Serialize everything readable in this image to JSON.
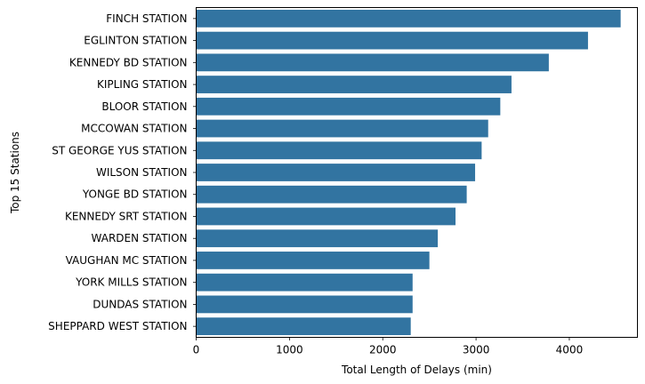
{
  "chart_data": {
    "type": "bar",
    "orientation": "horizontal",
    "title": "",
    "xlabel": "Total Length of Delays (min)",
    "ylabel": "Top 15 Stations",
    "categories": [
      "FINCH STATION",
      "EGLINTON STATION",
      "KENNEDY BD STATION",
      "KIPLING STATION",
      "BLOOR STATION",
      "MCCOWAN STATION",
      "ST GEORGE YUS STATION",
      "WILSON STATION",
      "YONGE BD STATION",
      "KENNEDY SRT STATION",
      "WARDEN STATION",
      "VAUGHAN MC STATION",
      "YORK MILLS STATION",
      "DUNDAS STATION",
      "SHEPPARD WEST STATION"
    ],
    "values": [
      4550,
      4200,
      3780,
      3380,
      3260,
      3130,
      3060,
      2990,
      2900,
      2780,
      2590,
      2500,
      2320,
      2320,
      2300
    ],
    "xlim": [
      0,
      4730
    ],
    "xticks": [
      0,
      1000,
      2000,
      3000,
      4000
    ],
    "bar_color": "#3274a1",
    "grid": false,
    "legend": "none"
  }
}
